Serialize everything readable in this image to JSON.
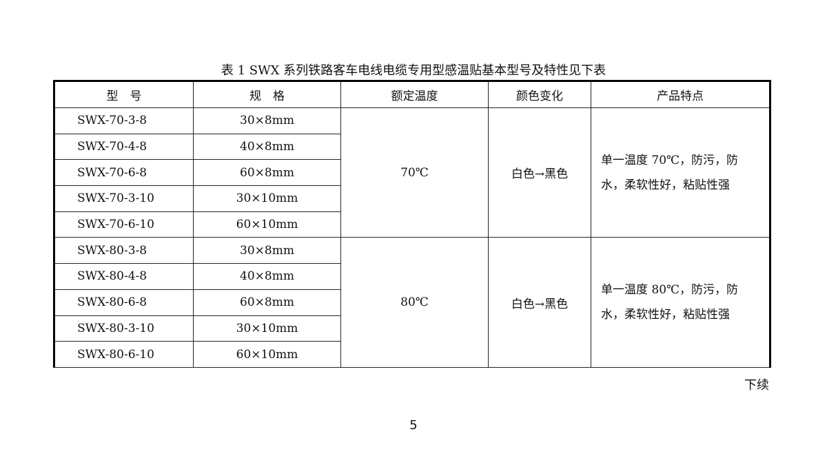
{
  "caption": "表 1   SWX 系列铁路客车电线电缆专用型感温贴基本型号及特性见下表",
  "headers": [
    "型　号",
    "规　格",
    "额定温度",
    "颜色变化",
    "产品特点"
  ],
  "groups": [
    {
      "temperature": "70℃",
      "color_change": "白色→黑色",
      "features": [
        "单一温度 70℃，防污，防",
        "水，柔软性好，粘贴性强"
      ],
      "rows": [
        {
          "model": "SWX-70-3-8",
          "spec": "30×8mm"
        },
        {
          "model": "SWX-70-4-8",
          "spec": "40×8mm"
        },
        {
          "model": "SWX-70-6-8",
          "spec": "60×8mm"
        },
        {
          "model": "SWX-70-3-10",
          "spec": "30×10mm"
        },
        {
          "model": "SWX-70-6-10",
          "spec": "60×10mm"
        }
      ]
    },
    {
      "temperature": "80℃",
      "color_change": "白色→黑色",
      "features": [
        "单一温度 80℃，防污，防",
        "水，柔软性好，粘贴性强"
      ],
      "rows": [
        {
          "model": "SWX-80-3-8",
          "spec": "30×8mm"
        },
        {
          "model": "SWX-80-4-8",
          "spec": "40×8mm"
        },
        {
          "model": "SWX-80-6-8",
          "spec": "60×8mm"
        },
        {
          "model": "SWX-80-3-10",
          "spec": "30×10mm"
        },
        {
          "model": "SWX-80-6-10",
          "spec": "60×10mm"
        }
      ]
    }
  ],
  "continued": "下续",
  "page_number": "5"
}
